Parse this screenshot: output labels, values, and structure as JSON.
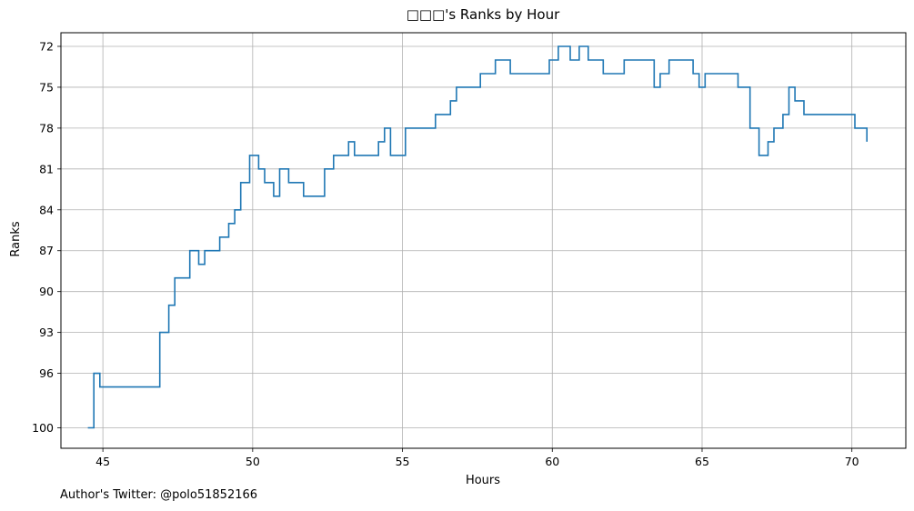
{
  "chart_data": {
    "type": "line",
    "step": "post",
    "title": "□□□'s Ranks by Hour",
    "xlabel": "Hours",
    "ylabel": "Ranks",
    "xlim": [
      43.6,
      71.8
    ],
    "ylim": [
      101.5,
      71.0
    ],
    "y_inverted": true,
    "grid": true,
    "x_ticks": [
      45,
      50,
      55,
      60,
      65,
      70
    ],
    "y_ticks": [
      72,
      75,
      78,
      81,
      84,
      87,
      90,
      93,
      96,
      100
    ],
    "series": [
      {
        "color": "#1f77b4",
        "x": [
          44.5,
          44.7,
          44.9,
          46.4,
          46.9,
          47.2,
          47.4,
          47.9,
          48.2,
          48.4,
          48.9,
          49.2,
          49.4,
          49.6,
          49.9,
          50.2,
          50.4,
          50.7,
          50.9,
          51.2,
          51.7,
          52.4,
          52.7,
          53.2,
          53.4,
          54.2,
          54.4,
          54.6,
          55.1,
          56.1,
          56.6,
          56.8,
          57.6,
          58.1,
          58.6,
          59.9,
          60.2,
          60.6,
          60.9,
          61.2,
          61.7,
          62.4,
          63.4,
          63.6,
          63.9,
          64.7,
          64.9,
          65.1,
          66.2,
          66.6,
          66.9,
          67.2,
          67.4,
          67.7,
          67.9,
          68.1,
          68.4,
          70.1,
          70.5
        ],
        "y": [
          100,
          96,
          97,
          97,
          93,
          91,
          89,
          87,
          88,
          87,
          86,
          85,
          84,
          82,
          80,
          81,
          82,
          83,
          81,
          82,
          83,
          81,
          80,
          79,
          80,
          79,
          78,
          80,
          78,
          77,
          76,
          75,
          74,
          73,
          74,
          73,
          72,
          73,
          72,
          73,
          74,
          73,
          75,
          74,
          73,
          74,
          75,
          74,
          75,
          78,
          80,
          79,
          78,
          77,
          75,
          76,
          77,
          78,
          79
        ]
      }
    ],
    "annotation": "Author's Twitter: @polo51852166"
  }
}
